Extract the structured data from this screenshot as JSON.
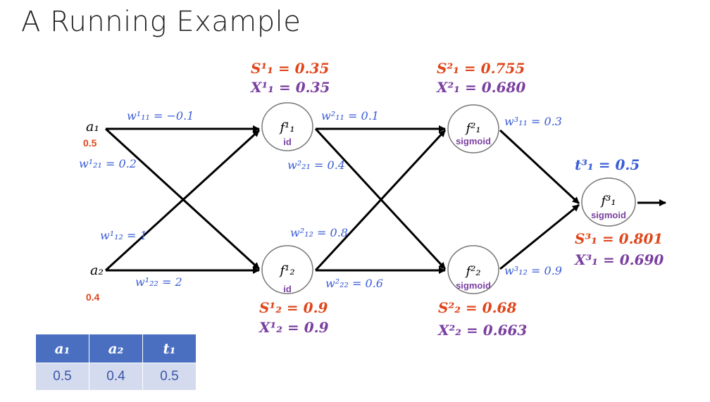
{
  "title": "A Running Example",
  "colors": {
    "weight": "#3a5dd6",
    "s_value": "#e0461b",
    "x_value": "#7a3fa0",
    "input": "#e0461b",
    "activation": "#7a3fa0",
    "edge": "#000000",
    "table_header": "#4a6fc1",
    "table_cell": "#d4dbee"
  },
  "inputs": {
    "a1": {
      "label": "a₁",
      "value": "0.5"
    },
    "a2": {
      "label": "a₂",
      "value": "0.4"
    }
  },
  "weights": {
    "w1_11": "w¹₁₁ = −0.1",
    "w1_21": "w¹₂₁ = 0.2",
    "w1_12": "w¹₁₂ = 1",
    "w1_22": "w¹₂₂ = 2",
    "w2_11": "w²₁₁ = 0.1",
    "w2_21": "w²₂₁ = 0.4",
    "w2_12": "w²₁₂ = 0.8",
    "w2_22": "w²₂₂ = 0.6",
    "w3_11": "w³₁₁ = 0.3",
    "w3_12": "w³₁₂ = 0.9"
  },
  "nodes": {
    "f1_1": {
      "label": "f¹₁",
      "activation": "id",
      "s": "S¹₁ = 0.35",
      "x": "X¹₁ = 0.35"
    },
    "f1_2": {
      "label": "f¹₂",
      "activation": "id",
      "s": "S¹₂ = 0.9",
      "x": "X¹₂ = 0.9"
    },
    "f2_1": {
      "label": "f²₁",
      "activation": "sigmoid",
      "s": "S²₁ = 0.755",
      "x": "X²₁ = 0.680"
    },
    "f2_2": {
      "label": "f²₂",
      "activation": "sigmoid",
      "s": "S²₂ = 0.68",
      "x": "X²₂ = 0.663"
    },
    "f3_1": {
      "label": "f³₁",
      "activation": "sigmoid",
      "s": "S³₁ = 0.801",
      "x": "X³₁ = 0.690",
      "target": "t³₁ = 0.5"
    }
  },
  "table": {
    "headers": [
      "a₁",
      "a₂",
      "t₁"
    ],
    "rows": [
      [
        "0.5",
        "0.4",
        "0.5"
      ]
    ]
  }
}
